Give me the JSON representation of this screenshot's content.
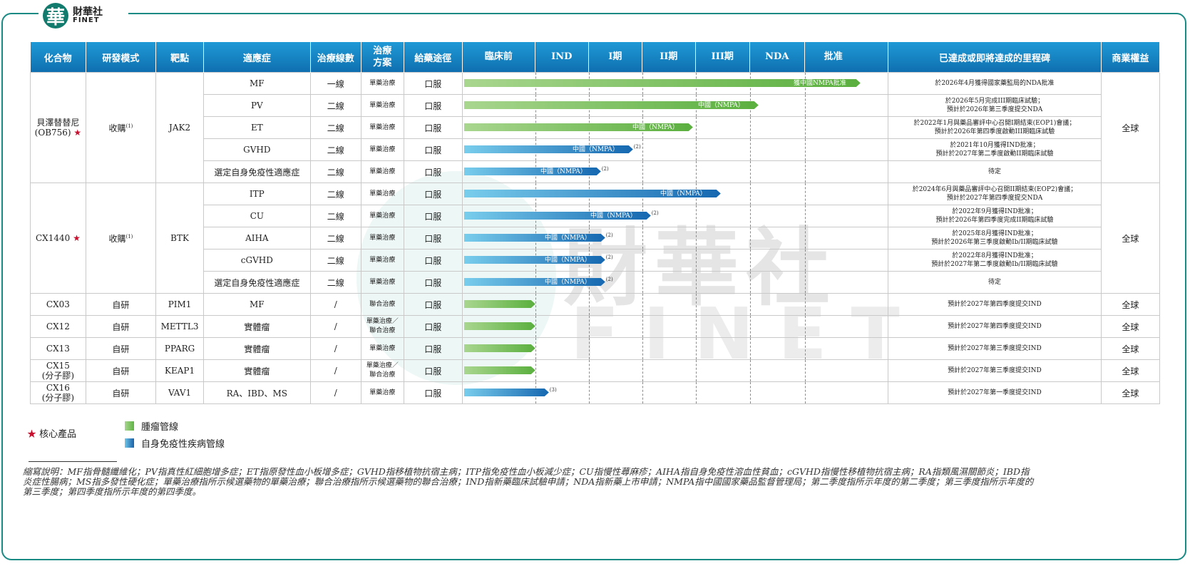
{
  "logo": {
    "glyph": "華",
    "name_cn": "財華社",
    "name_en": "FINET"
  },
  "watermark": {
    "cn": "財華社",
    "en": "FINET"
  },
  "headers": {
    "compound": "化合物",
    "mode": "研發模式",
    "target": "靶點",
    "indication": "適應症",
    "line": "治療線數",
    "scheme": "治療方案",
    "route": "給藥途徑",
    "preclinical": "臨床前",
    "ind": "IND",
    "p1": "I期",
    "p2": "II期",
    "p3": "III期",
    "nda": "NDA",
    "approval": "批准",
    "milestone": "已達成或即將達成的里程碑",
    "rights": "商業權益"
  },
  "colors": {
    "oncology": "#6fbf4a",
    "autoimmune": "#1a6fb8",
    "header": "#1683c6",
    "star": "#c8102e",
    "frame": "#1a8a85"
  },
  "stages": [
    "臨床前",
    "IND",
    "I期",
    "II期",
    "III期",
    "NDA",
    "批准"
  ],
  "groups": [
    {
      "compound": "貝澤替替尼\n(OB756)",
      "star": true,
      "mode": "收購",
      "mode_note": "(1)",
      "target": "JAK2",
      "rights": "全球",
      "rows": 5
    },
    {
      "compound": "CX1440",
      "star": true,
      "mode": "收購",
      "mode_note": "(1)",
      "target": "BTK",
      "rights": "全球",
      "rows": 5
    },
    {
      "compound": "CX03",
      "star": false,
      "mode": "自研",
      "mode_note": "",
      "target": "PIM1",
      "rights": "全球",
      "rows": 1
    },
    {
      "compound": "CX12",
      "star": false,
      "mode": "自研",
      "mode_note": "",
      "target": "METTL3",
      "rights": "全球",
      "rows": 1
    },
    {
      "compound": "CX13",
      "star": false,
      "mode": "自研",
      "mode_note": "",
      "target": "PPARG",
      "rights": "全球",
      "rows": 1
    },
    {
      "compound": "CX15\n(分子膠)",
      "star": false,
      "mode": "自研",
      "mode_note": "",
      "target": "KEAP1",
      "rights": "全球",
      "rows": 1
    },
    {
      "compound": "CX16\n(分子膠)",
      "star": false,
      "mode": "自研",
      "mode_note": "",
      "target": "VAV1",
      "rights": "全球",
      "rows": 1
    }
  ],
  "rows": [
    {
      "indication": "MF",
      "line": "一線",
      "scheme": "單藥治療",
      "route": "口服",
      "type": "onc",
      "progress": 1.0,
      "label": "獲中國NMPA批准",
      "note": "",
      "milestone": "於2026年4月獲得國家藥監局的NDA批准"
    },
    {
      "indication": "PV",
      "line": "二線",
      "scheme": "單藥治療",
      "route": "口服",
      "type": "onc",
      "progress": 0.745,
      "label": "中國（NMPA）",
      "note": "",
      "milestone": "於2026年5月完成III期臨床試驗；\n預計於2026年第三季度提交NDA"
    },
    {
      "indication": "ET",
      "line": "二線",
      "scheme": "單藥治療",
      "route": "口服",
      "type": "onc",
      "progress": 0.58,
      "label": "中國（NMPA）",
      "note": "",
      "milestone": "於2022年1月與藥品審評中心召開I期結束(EOP1)會議；\n預計於2026年第四季度啟動III期臨床試驗"
    },
    {
      "indication": "GVHD",
      "line": "二線",
      "scheme": "單藥治療",
      "route": "口服",
      "type": "auto",
      "progress": 0.43,
      "label": "中國（NMPA）",
      "note": "(2)",
      "milestone": "於2021年10月獲得IND批准；\n預計於2027年第二季度啟動II期臨床試驗"
    },
    {
      "indication": "選定自身免疫性適應症",
      "line": "二線",
      "scheme": "單藥治療",
      "route": "口服",
      "type": "auto",
      "progress": 0.35,
      "label": "中國（NMPA）",
      "note": "(2)",
      "milestone": "待定"
    },
    {
      "indication": "ITP",
      "line": "二線",
      "scheme": "單藥治療",
      "route": "口服",
      "type": "auto",
      "progress": 0.65,
      "label": "中國（NMPA）",
      "note": "",
      "milestone": "於2024年6月與藥品審評中心召開II期結束(EOP2)會議；\n預計於2027年第四季度提交NDA"
    },
    {
      "indication": "CU",
      "line": "二線",
      "scheme": "單藥治療",
      "route": "口服",
      "type": "auto",
      "progress": 0.475,
      "label": "中國（NMPA）",
      "note": "(2)",
      "milestone": "於2022年9月獲得IND批准；\n預計於2026年第四季度完成II期臨床試驗"
    },
    {
      "indication": "AIHA",
      "line": "二線",
      "scheme": "單藥治療",
      "route": "口服",
      "type": "auto",
      "progress": 0.36,
      "label": "中國（NMPA）",
      "note": "(2)",
      "milestone": "於2025年8月獲得IND批准；\n預計於2026年第三季度啟動Ib/II期臨床試驗"
    },
    {
      "indication": "cGVHD",
      "line": "二線",
      "scheme": "單藥治療",
      "route": "口服",
      "type": "auto",
      "progress": 0.36,
      "label": "中國（NMPA）",
      "note": "(2)",
      "milestone": "於2022年8月獲得IND批准；\n預計於2027年第二季度啟動Ib/II期臨床試驗"
    },
    {
      "indication": "選定自身免疫性適應症",
      "line": "二線",
      "scheme": "單藥治療",
      "route": "口服",
      "type": "auto",
      "progress": 0.36,
      "label": "中國（NMPA）",
      "note": "(2)",
      "milestone": "待定"
    },
    {
      "indication": "MF",
      "line": "/",
      "scheme": "聯合治療",
      "route": "口服",
      "type": "onc",
      "progress": 0.185,
      "label": "",
      "note": "",
      "milestone": "預計於2027年第四季度提交IND"
    },
    {
      "indication": "實體瘤",
      "line": "/",
      "scheme": "單藥治療／\n聯合治療",
      "route": "口服",
      "type": "onc",
      "progress": 0.185,
      "label": "",
      "note": "",
      "milestone": "預計於2027年第四季度提交IND"
    },
    {
      "indication": "實體瘤",
      "line": "/",
      "scheme": "單藥治療",
      "route": "口服",
      "type": "onc",
      "progress": 0.185,
      "label": "",
      "note": "",
      "milestone": "預計於2027年第三季度提交IND"
    },
    {
      "indication": "實體瘤",
      "line": "/",
      "scheme": "單藥治療／\n聯合治療",
      "route": "口服",
      "type": "onc",
      "progress": 0.185,
      "label": "",
      "note": "",
      "milestone": "預計於2027年第三季度提交IND"
    },
    {
      "indication": "RA、IBD、MS",
      "line": "/",
      "scheme": "單藥治療",
      "route": "口服",
      "type": "auto",
      "progress": 0.22,
      "label": "",
      "note": "(3)",
      "milestone": "預計於2027年第一季度提交IND"
    }
  ],
  "legend": {
    "core": "核心產品",
    "oncology": "腫瘤管線",
    "autoimmune": "自身免疫性疾病管線"
  },
  "footnote": "縮寫說明：MF指骨髓纖維化；PV指真性紅細胞增多症；ET指原發性血小板增多症；GVHD指移植物抗宿主病；ITP指免疫性血小板減少症；CU指慢性蕁麻疹；AIHA指自身免疫性溶血性貧血；cGVHD指慢性移植物抗宿主病；RA指類風濕關節炎；IBD指炎症性腸病；MS指多發性硬化症；單藥治療指所示候選藥物的單藥治療；聯合治療指所示候選藥物的聯合治療；IND指新藥臨床試驗申請；NDA指新藥上市申請；NMPA指中國國家藥品監督管理局；第二季度指所示年度的第二季度；第三季度指所示年度的第三季度；第四季度指所示年度的第四季度。"
}
